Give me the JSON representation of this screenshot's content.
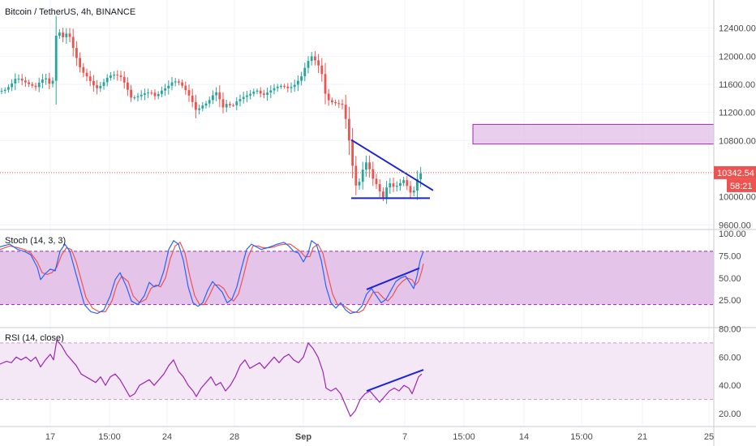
{
  "chart_data": [
    {
      "type": "candlestick",
      "title": "Bitcoin / TetherUS, 4h, BINANCE",
      "y_ticks": [
        "12400.00",
        "12000.00",
        "11600.00",
        "11200.00",
        "10800.00",
        "9600.00"
      ],
      "y_ticks_num": [
        12400,
        12000,
        11600,
        11200,
        10800,
        9600
      ],
      "extra_tick": {
        "label": "10000.00",
        "value": 10000
      },
      "ylim": [
        9600,
        12800
      ],
      "last_price": "10342.54",
      "last_price_num": 10342.54,
      "countdown": "58:21",
      "close_path": [
        [
          0,
          11500
        ],
        [
          8,
          11530
        ],
        [
          16,
          11630
        ],
        [
          20,
          11700
        ],
        [
          26,
          11660
        ],
        [
          36,
          11600
        ],
        [
          44,
          11560
        ],
        [
          50,
          11650
        ],
        [
          56,
          11700
        ],
        [
          60,
          11600
        ],
        [
          66,
          11660
        ],
        [
          70,
          12450
        ],
        [
          76,
          12250
        ],
        [
          84,
          12350
        ],
        [
          92,
          12050
        ],
        [
          100,
          11800
        ],
        [
          108,
          11700
        ],
        [
          114,
          11600
        ],
        [
          120,
          11540
        ],
        [
          126,
          11600
        ],
        [
          134,
          11720
        ],
        [
          142,
          11740
        ],
        [
          150,
          11700
        ],
        [
          156,
          11560
        ],
        [
          162,
          11400
        ],
        [
          170,
          11430
        ],
        [
          178,
          11470
        ],
        [
          186,
          11490
        ],
        [
          192,
          11420
        ],
        [
          198,
          11500
        ],
        [
          206,
          11560
        ],
        [
          214,
          11650
        ],
        [
          222,
          11620
        ],
        [
          230,
          11500
        ],
        [
          236,
          11380
        ],
        [
          242,
          11220
        ],
        [
          250,
          11300
        ],
        [
          256,
          11340
        ],
        [
          262,
          11440
        ],
        [
          268,
          11500
        ],
        [
          274,
          11260
        ],
        [
          280,
          11330
        ],
        [
          286,
          11280
        ],
        [
          292,
          11360
        ],
        [
          300,
          11420
        ],
        [
          308,
          11460
        ],
        [
          316,
          11520
        ],
        [
          324,
          11440
        ],
        [
          332,
          11500
        ],
        [
          340,
          11560
        ],
        [
          348,
          11580
        ],
        [
          356,
          11540
        ],
        [
          364,
          11600
        ],
        [
          372,
          11720
        ],
        [
          378,
          11900
        ],
        [
          384,
          12000
        ],
        [
          390,
          11920
        ],
        [
          396,
          11800
        ],
        [
          402,
          11400
        ],
        [
          408,
          11350
        ],
        [
          414,
          11330
        ],
        [
          420,
          11320
        ],
        [
          424,
          11300
        ],
        [
          428,
          10950
        ],
        [
          432,
          10700
        ],
        [
          436,
          10300
        ],
        [
          440,
          10100
        ],
        [
          444,
          10250
        ],
        [
          448,
          10420
        ],
        [
          452,
          10500
        ],
        [
          456,
          10380
        ],
        [
          460,
          10250
        ],
        [
          464,
          10180
        ],
        [
          468,
          10080
        ],
        [
          472,
          9980
        ],
        [
          476,
          10120
        ],
        [
          480,
          10200
        ],
        [
          486,
          10130
        ],
        [
          492,
          10180
        ],
        [
          498,
          10240
        ],
        [
          502,
          10150
        ],
        [
          506,
          10060
        ],
        [
          510,
          10080
        ],
        [
          514,
          10240
        ],
        [
          518,
          10330
        ],
        [
          522,
          10342
        ]
      ],
      "box": {
        "x_from": 583,
        "x_to": 880,
        "y_from": 10750,
        "y_to": 11030
      },
      "trendline_upper": [
        [
          433,
          10810
        ],
        [
          534,
          10090
        ]
      ],
      "trendline_lower": [
        [
          433,
          9980
        ],
        [
          530,
          9980
        ]
      ],
      "colors": {
        "up": "#26a69a",
        "down": "#ef5350",
        "tag_bg": "#ef5350",
        "box_fill": "#e1bee7",
        "box_border": "#9c27b0",
        "trendline": "#1a23d8"
      }
    },
    {
      "type": "line",
      "title": "Stoch (14, 3, 3)",
      "y_ticks": [
        "100.00",
        "75.00",
        "50.00",
        "25.00"
      ],
      "y_ticks_num": [
        100,
        75,
        50,
        25
      ],
      "ylim": [
        0,
        100
      ],
      "band": [
        20,
        80
      ],
      "k_path": [
        [
          0,
          85
        ],
        [
          12,
          88
        ],
        [
          22,
          82
        ],
        [
          30,
          80
        ],
        [
          38,
          76
        ],
        [
          46,
          62
        ],
        [
          50,
          48
        ],
        [
          56,
          55
        ],
        [
          62,
          60
        ],
        [
          68,
          58
        ],
        [
          74,
          80
        ],
        [
          80,
          88
        ],
        [
          86,
          80
        ],
        [
          92,
          60
        ],
        [
          98,
          40
        ],
        [
          104,
          20
        ],
        [
          112,
          12
        ],
        [
          120,
          10
        ],
        [
          128,
          14
        ],
        [
          136,
          30
        ],
        [
          142,
          48
        ],
        [
          148,
          56
        ],
        [
          156,
          40
        ],
        [
          162,
          24
        ],
        [
          170,
          20
        ],
        [
          178,
          30
        ],
        [
          184,
          45
        ],
        [
          190,
          40
        ],
        [
          196,
          42
        ],
        [
          202,
          58
        ],
        [
          208,
          82
        ],
        [
          214,
          92
        ],
        [
          220,
          88
        ],
        [
          226,
          70
        ],
        [
          232,
          40
        ],
        [
          238,
          22
        ],
        [
          244,
          18
        ],
        [
          250,
          22
        ],
        [
          256,
          36
        ],
        [
          262,
          46
        ],
        [
          268,
          40
        ],
        [
          274,
          34
        ],
        [
          280,
          22
        ],
        [
          286,
          26
        ],
        [
          292,
          40
        ],
        [
          298,
          62
        ],
        [
          304,
          82
        ],
        [
          310,
          88
        ],
        [
          316,
          85
        ],
        [
          322,
          82
        ],
        [
          330,
          84
        ],
        [
          336,
          86
        ],
        [
          342,
          88
        ],
        [
          350,
          90
        ],
        [
          356,
          86
        ],
        [
          362,
          80
        ],
        [
          368,
          78
        ],
        [
          374,
          68
        ],
        [
          380,
          78
        ],
        [
          384,
          92
        ],
        [
          390,
          88
        ],
        [
          396,
          70
        ],
        [
          402,
          40
        ],
        [
          408,
          22
        ],
        [
          414,
          16
        ],
        [
          420,
          22
        ],
        [
          426,
          14
        ],
        [
          432,
          10
        ],
        [
          440,
          12
        ],
        [
          446,
          18
        ],
        [
          452,
          32
        ],
        [
          458,
          38
        ],
        [
          464,
          30
        ],
        [
          470,
          22
        ],
        [
          476,
          26
        ],
        [
          482,
          36
        ],
        [
          488,
          46
        ],
        [
          494,
          50
        ],
        [
          500,
          52
        ],
        [
          506,
          44
        ],
        [
          510,
          38
        ],
        [
          514,
          52
        ],
        [
          518,
          70
        ],
        [
          522,
          80
        ]
      ],
      "d_path": [
        [
          0,
          82
        ],
        [
          12,
          86
        ],
        [
          22,
          84
        ],
        [
          30,
          82
        ],
        [
          38,
          78
        ],
        [
          46,
          68
        ],
        [
          52,
          56
        ],
        [
          58,
          54
        ],
        [
          64,
          56
        ],
        [
          70,
          62
        ],
        [
          76,
          76
        ],
        [
          82,
          84
        ],
        [
          88,
          82
        ],
        [
          94,
          68
        ],
        [
          100,
          48
        ],
        [
          106,
          28
        ],
        [
          114,
          16
        ],
        [
          122,
          12
        ],
        [
          130,
          12
        ],
        [
          138,
          24
        ],
        [
          144,
          42
        ],
        [
          150,
          52
        ],
        [
          158,
          46
        ],
        [
          164,
          30
        ],
        [
          172,
          22
        ],
        [
          180,
          26
        ],
        [
          186,
          38
        ],
        [
          192,
          42
        ],
        [
          198,
          40
        ],
        [
          204,
          50
        ],
        [
          210,
          72
        ],
        [
          216,
          86
        ],
        [
          222,
          90
        ],
        [
          228,
          78
        ],
        [
          234,
          52
        ],
        [
          240,
          30
        ],
        [
          246,
          20
        ],
        [
          252,
          20
        ],
        [
          258,
          30
        ],
        [
          264,
          42
        ],
        [
          270,
          42
        ],
        [
          276,
          38
        ],
        [
          282,
          28
        ],
        [
          288,
          24
        ],
        [
          294,
          32
        ],
        [
          300,
          52
        ],
        [
          306,
          74
        ],
        [
          312,
          86
        ],
        [
          318,
          86
        ],
        [
          324,
          84
        ],
        [
          332,
          84
        ],
        [
          338,
          85
        ],
        [
          344,
          87
        ],
        [
          352,
          88
        ],
        [
          358,
          88
        ],
        [
          364,
          84
        ],
        [
          370,
          80
        ],
        [
          376,
          74
        ],
        [
          382,
          74
        ],
        [
          386,
          84
        ],
        [
          392,
          88
        ],
        [
          398,
          78
        ],
        [
          404,
          54
        ],
        [
          410,
          32
        ],
        [
          416,
          20
        ],
        [
          422,
          20
        ],
        [
          428,
          16
        ],
        [
          434,
          12
        ],
        [
          442,
          11
        ],
        [
          448,
          14
        ],
        [
          454,
          24
        ],
        [
          460,
          34
        ],
        [
          466,
          34
        ],
        [
          472,
          28
        ],
        [
          478,
          24
        ],
        [
          484,
          30
        ],
        [
          490,
          40
        ],
        [
          496,
          46
        ],
        [
          502,
          50
        ],
        [
          508,
          48
        ],
        [
          512,
          42
        ],
        [
          516,
          46
        ],
        [
          520,
          58
        ],
        [
          522,
          66
        ]
      ],
      "trendline": [
        [
          452,
          37
        ],
        [
          517,
          61
        ]
      ],
      "colors": {
        "k": "#2962ff",
        "d": "#ef5350",
        "band_fill": "#e1bee7",
        "band_border": "#9c27b0"
      }
    },
    {
      "type": "line",
      "title": "RSI (14, close)",
      "y_ticks": [
        "80.00",
        "60.00",
        "40.00",
        "20.00"
      ],
      "y_ticks_num": [
        80,
        60,
        40,
        20
      ],
      "ylim": [
        14,
        80
      ],
      "band": [
        30,
        70
      ],
      "rsi_path": [
        [
          0,
          55
        ],
        [
          8,
          57
        ],
        [
          14,
          56
        ],
        [
          20,
          60
        ],
        [
          26,
          58
        ],
        [
          32,
          60
        ],
        [
          38,
          57
        ],
        [
          44,
          60
        ],
        [
          50,
          53
        ],
        [
          56,
          58
        ],
        [
          62,
          62
        ],
        [
          66,
          58
        ],
        [
          70,
          72
        ],
        [
          76,
          68
        ],
        [
          82,
          62
        ],
        [
          88,
          58
        ],
        [
          94,
          54
        ],
        [
          100,
          48
        ],
        [
          106,
          46
        ],
        [
          112,
          44
        ],
        [
          118,
          42
        ],
        [
          124,
          46
        ],
        [
          130,
          40
        ],
        [
          136,
          46
        ],
        [
          142,
          48
        ],
        [
          148,
          44
        ],
        [
          154,
          38
        ],
        [
          160,
          32
        ],
        [
          166,
          34
        ],
        [
          172,
          40
        ],
        [
          178,
          42
        ],
        [
          184,
          44
        ],
        [
          190,
          40
        ],
        [
          196,
          44
        ],
        [
          202,
          48
        ],
        [
          208,
          54
        ],
        [
          214,
          58
        ],
        [
          220,
          50
        ],
        [
          226,
          46
        ],
        [
          232,
          40
        ],
        [
          238,
          36
        ],
        [
          242,
          32
        ],
        [
          248,
          38
        ],
        [
          254,
          42
        ],
        [
          260,
          46
        ],
        [
          266,
          40
        ],
        [
          272,
          42
        ],
        [
          278,
          36
        ],
        [
          284,
          40
        ],
        [
          290,
          46
        ],
        [
          296,
          54
        ],
        [
          302,
          58
        ],
        [
          308,
          52
        ],
        [
          314,
          54
        ],
        [
          320,
          56
        ],
        [
          326,
          52
        ],
        [
          332,
          56
        ],
        [
          338,
          60
        ],
        [
          344,
          56
        ],
        [
          350,
          60
        ],
        [
          356,
          62
        ],
        [
          362,
          58
        ],
        [
          368,
          56
        ],
        [
          374,
          60
        ],
        [
          380,
          70
        ],
        [
          386,
          66
        ],
        [
          392,
          60
        ],
        [
          398,
          50
        ],
        [
          402,
          38
        ],
        [
          408,
          36
        ],
        [
          414,
          38
        ],
        [
          420,
          34
        ],
        [
          426,
          26
        ],
        [
          432,
          18
        ],
        [
          438,
          22
        ],
        [
          444,
          30
        ],
        [
          450,
          34
        ],
        [
          456,
          36
        ],
        [
          462,
          32
        ],
        [
          468,
          28
        ],
        [
          474,
          32
        ],
        [
          480,
          36
        ],
        [
          486,
          38
        ],
        [
          492,
          36
        ],
        [
          498,
          40
        ],
        [
          504,
          38
        ],
        [
          508,
          34
        ],
        [
          512,
          40
        ],
        [
          516,
          46
        ],
        [
          520,
          48
        ]
      ],
      "trendline": [
        [
          452,
          36
        ],
        [
          522,
          51
        ]
      ],
      "colors": {
        "line": "#9c27b0",
        "band_fill": "#f3e5f5",
        "band_border": "#ce93d8"
      }
    }
  ],
  "time_axis": {
    "ticks": [
      "17",
      "15:00",
      "24",
      "28",
      "Sep",
      "7",
      "15:00",
      "14",
      "15:00",
      "21",
      "25"
    ],
    "positions": [
      62,
      135,
      206,
      289,
      374,
      499,
      572,
      646,
      717,
      792,
      874
    ]
  }
}
